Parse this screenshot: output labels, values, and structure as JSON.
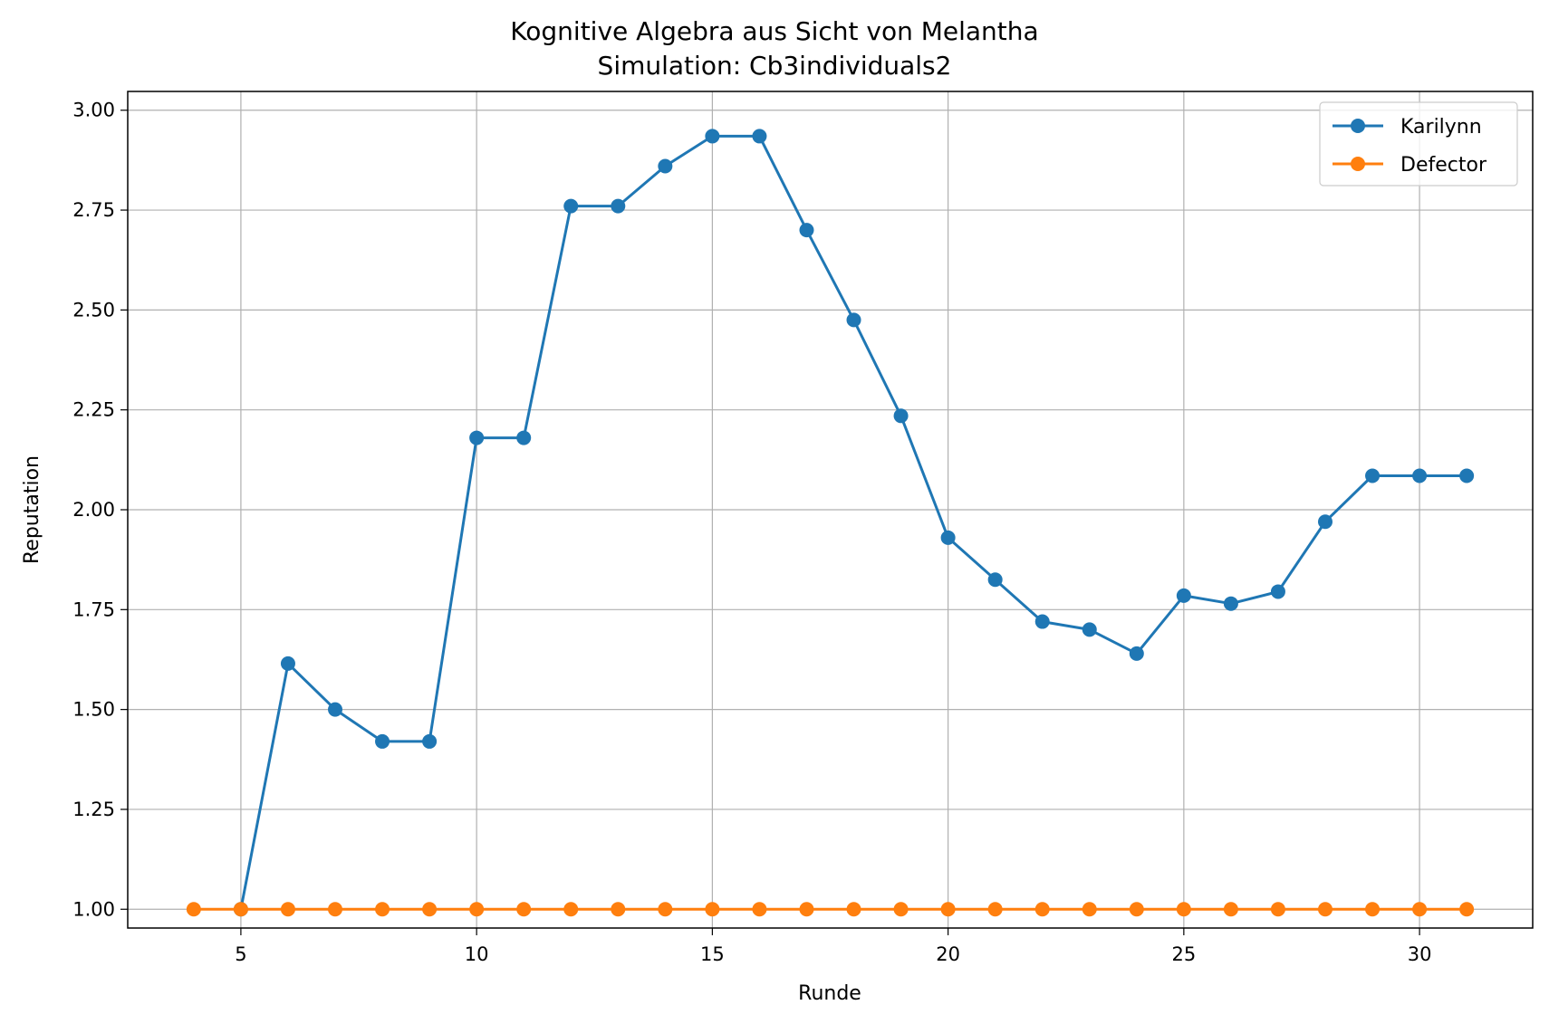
{
  "chart_data": {
    "type": "line",
    "title": "Kognitive Algebra aus Sicht von Melantha",
    "subtitle": "Simulation: Cb3individuals2",
    "xlabel": "Runde",
    "ylabel": "Reputation",
    "xlim": [
      2.6,
      32.4
    ],
    "ylim": [
      0.953,
      3.047
    ],
    "xticks": [
      5,
      10,
      15,
      20,
      25,
      30
    ],
    "yticks": [
      1.0,
      1.25,
      1.5,
      1.75,
      2.0,
      2.25,
      2.5,
      2.75,
      3.0
    ],
    "ytick_labels": [
      "1.00",
      "1.25",
      "1.50",
      "1.75",
      "2.00",
      "2.25",
      "2.50",
      "2.75",
      "3.00"
    ],
    "grid": true,
    "legend_position": "top-right",
    "series": [
      {
        "name": "Karilynn",
        "color": "#1f77b4",
        "x": [
          5,
          6,
          7,
          8,
          9,
          10,
          11,
          12,
          13,
          14,
          15,
          16,
          17,
          18,
          19,
          20,
          21,
          22,
          23,
          24,
          25,
          26,
          27,
          28,
          29,
          30,
          31
        ],
        "y": [
          1.0,
          1.615,
          1.5,
          1.42,
          1.42,
          2.18,
          2.18,
          2.76,
          2.76,
          2.86,
          2.935,
          2.935,
          2.7,
          2.475,
          2.235,
          1.93,
          1.825,
          1.72,
          1.7,
          1.64,
          1.785,
          1.765,
          1.795,
          1.97,
          2.085,
          2.085,
          2.085
        ]
      },
      {
        "name": "Defector",
        "color": "#ff7f0e",
        "x": [
          4,
          5,
          6,
          7,
          8,
          9,
          10,
          11,
          12,
          13,
          14,
          15,
          16,
          17,
          18,
          19,
          20,
          21,
          22,
          23,
          24,
          25,
          26,
          27,
          28,
          29,
          30,
          31
        ],
        "y": [
          1.0,
          1.0,
          1.0,
          1.0,
          1.0,
          1.0,
          1.0,
          1.0,
          1.0,
          1.0,
          1.0,
          1.0,
          1.0,
          1.0,
          1.0,
          1.0,
          1.0,
          1.0,
          1.0,
          1.0,
          1.0,
          1.0,
          1.0,
          1.0,
          1.0,
          1.0,
          1.0,
          1.0
        ]
      }
    ]
  }
}
